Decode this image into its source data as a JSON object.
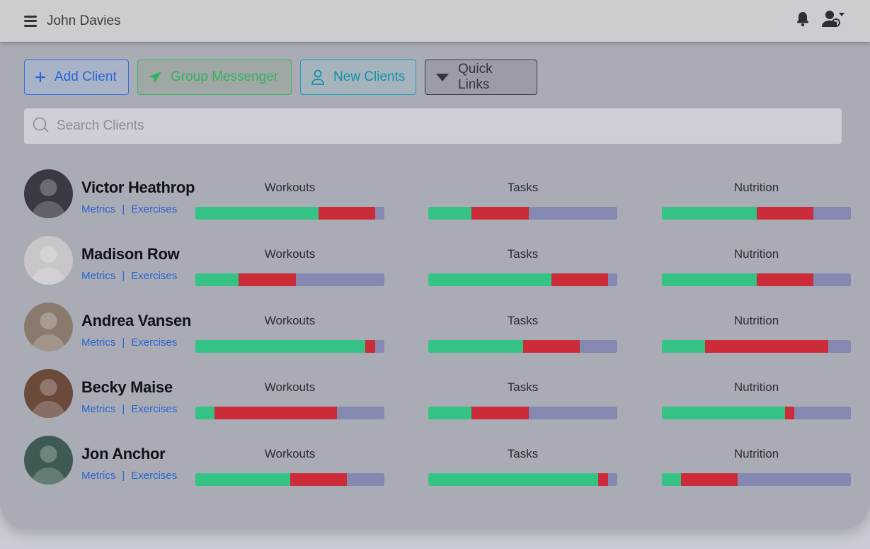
{
  "header": {
    "user_name": "John Davies"
  },
  "actions": {
    "add_client": "Add Client",
    "group_messenger": "Group Messenger",
    "new_clients": "New Clients",
    "quick_links": "Quick Links"
  },
  "search": {
    "placeholder": "Search Clients"
  },
  "labels": {
    "metrics": "Metrics",
    "exercises": "Exercises",
    "separator": "|"
  },
  "columns": {
    "workouts": "Workouts",
    "tasks": "Tasks",
    "nutrition": "Nutrition"
  },
  "colors": {
    "complete": "#34c285",
    "missed": "#cc2b3a",
    "remaining": "#8588b0"
  },
  "clients": [
    {
      "name": "Victor Heathrop",
      "avatar_color": "#3b3a44",
      "workouts": [
        0.65,
        0.3,
        0.05
      ],
      "tasks": [
        0.23,
        0.3,
        0.47
      ],
      "nutrition": [
        0.5,
        0.3,
        0.2
      ]
    },
    {
      "name": "Madison Row",
      "avatar_color": "#c9c5c8",
      "workouts": [
        0.23,
        0.3,
        0.47
      ],
      "tasks": [
        0.65,
        0.3,
        0.05
      ],
      "nutrition": [
        0.5,
        0.3,
        0.2
      ]
    },
    {
      "name": "Andrea Vansen",
      "avatar_color": "#8a7a6e",
      "workouts": [
        0.9,
        0.05,
        0.05
      ],
      "tasks": [
        0.5,
        0.3,
        0.2
      ],
      "nutrition": [
        0.23,
        0.65,
        0.12
      ]
    },
    {
      "name": "Becky Maise",
      "avatar_color": "#6b4a3c",
      "workouts": [
        0.1,
        0.65,
        0.25
      ],
      "tasks": [
        0.23,
        0.3,
        0.47
      ],
      "nutrition": [
        0.65,
        0.05,
        0.3
      ]
    },
    {
      "name": "Jon Anchor",
      "avatar_color": "#3f5a54",
      "workouts": [
        0.5,
        0.3,
        0.2
      ],
      "tasks": [
        0.9,
        0.05,
        0.05
      ],
      "nutrition": [
        0.1,
        0.3,
        0.6
      ]
    }
  ]
}
